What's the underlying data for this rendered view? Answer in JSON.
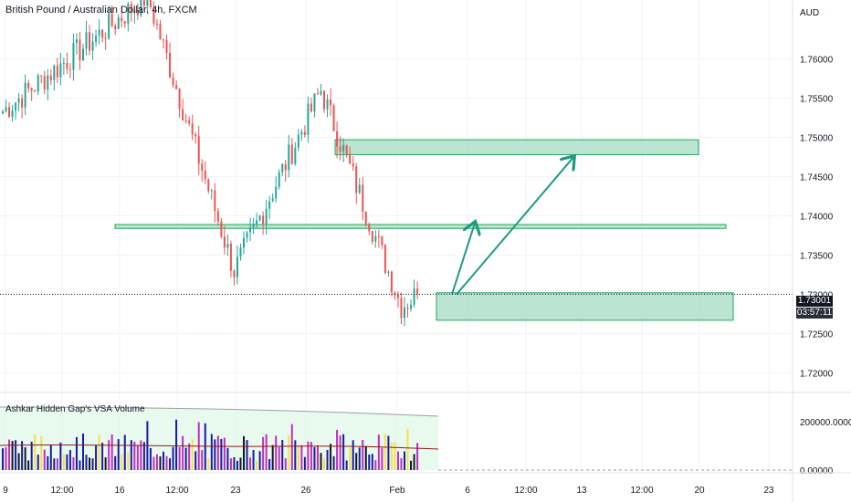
{
  "header": {
    "symbol_title": "British Pound / Australian Dollar, 4h, FXCM",
    "currency": "AUD"
  },
  "indicator": {
    "title": "Ashkar Hidden Gap's VSA Volume",
    "ticks": [
      "200000.00000",
      "0.00000"
    ]
  },
  "price_tag": {
    "price": "1.73001",
    "countdown": "03:57:11"
  },
  "colors": {
    "up": "#26a69a",
    "down": "#ef5350",
    "zone_fill": "#a5dbc4",
    "zone_stroke": "#26a65b",
    "arrow": "#1f9a80"
  },
  "chart_data": {
    "type": "candlestick",
    "title": "British Pound / Australian Dollar, 4h, FXCM",
    "ylim": [
      1.7175,
      1.7675
    ],
    "y_ticks": [
      "1.76000",
      "1.75500",
      "1.75000",
      "1.74500",
      "1.74000",
      "1.73500",
      "1.73000",
      "1.72500",
      "1.72000"
    ],
    "x_ticks": [
      "9",
      "12:00",
      "16",
      "12:00",
      "23",
      "26",
      "Feb",
      "6",
      "12:00",
      "13",
      "12:00",
      "20",
      "23"
    ],
    "last_price": 1.73001,
    "zones": [
      {
        "low": 1.7478,
        "high": 1.7497
      },
      {
        "low": 1.7384,
        "high": 1.7389
      },
      {
        "low": 1.7267,
        "high": 1.7302
      }
    ],
    "path_sketch": [
      {
        "seg": "rally",
        "from": 1.753,
        "to": 1.768
      },
      {
        "seg": "selloff",
        "from": 1.768,
        "to": 1.733
      },
      {
        "seg": "rebound",
        "from": 1.733,
        "to": 1.756
      },
      {
        "seg": "drop",
        "from": 1.756,
        "to": 1.7285
      },
      {
        "seg": "last",
        "from": 1.7285,
        "to": 1.73
      }
    ],
    "projection": [
      1.73,
      1.7385,
      1.747
    ]
  }
}
